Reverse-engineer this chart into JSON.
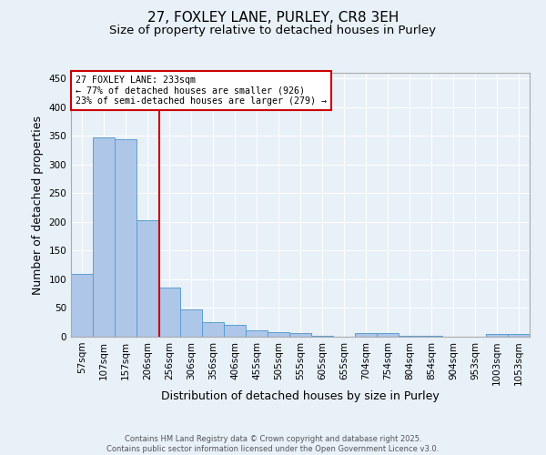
{
  "title_line1": "27, FOXLEY LANE, PURLEY, CR8 3EH",
  "title_line2": "Size of property relative to detached houses in Purley",
  "xlabel": "Distribution of detached houses by size in Purley",
  "ylabel": "Number of detached properties",
  "bar_labels": [
    "57sqm",
    "107sqm",
    "157sqm",
    "206sqm",
    "256sqm",
    "306sqm",
    "356sqm",
    "406sqm",
    "455sqm",
    "505sqm",
    "555sqm",
    "605sqm",
    "655sqm",
    "704sqm",
    "754sqm",
    "804sqm",
    "854sqm",
    "904sqm",
    "953sqm",
    "1003sqm",
    "1053sqm"
  ],
  "bar_values": [
    110,
    348,
    345,
    203,
    85,
    47,
    25,
    20,
    11,
    8,
    6,
    1,
    0,
    7,
    7,
    2,
    1,
    0,
    0,
    4,
    4
  ],
  "bar_color": "#aec6e8",
  "bar_edge_color": "#5a9fd4",
  "vline_x": 3.54,
  "vline_color": "#cc0000",
  "annotation_box_text": "27 FOXLEY LANE: 233sqm\n← 77% of detached houses are smaller (926)\n23% of semi-detached houses are larger (279) →",
  "annotation_box_color": "#cc0000",
  "annotation_box_bg": "#ffffff",
  "ylim": [
    0,
    460
  ],
  "yticks": [
    0,
    50,
    100,
    150,
    200,
    250,
    300,
    350,
    400,
    450
  ],
  "background_color": "#e8f0f8",
  "grid_color": "#ffffff",
  "footnote": "Contains HM Land Registry data © Crown copyright and database right 2025.\nContains public sector information licensed under the Open Government Licence v3.0.",
  "title_fontsize": 11,
  "subtitle_fontsize": 9.5,
  "tick_fontsize": 7.5,
  "label_fontsize": 9,
  "annot_fontsize": 7.2
}
